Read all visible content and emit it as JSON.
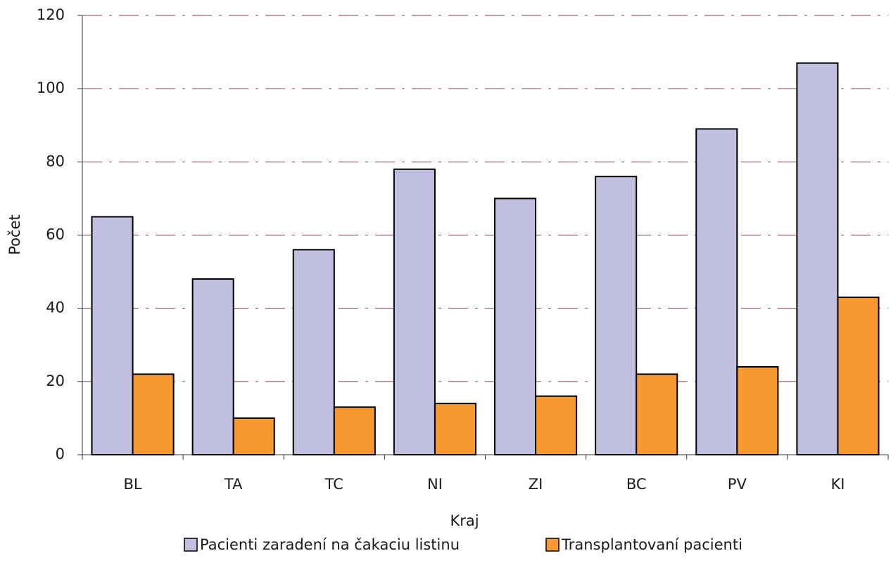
{
  "chart_data": {
    "type": "bar",
    "x_label": "Kraj",
    "y_label": "Počet",
    "categories": [
      "BL",
      "TA",
      "TC",
      "NI",
      "ZI",
      "BC",
      "PV",
      "KI"
    ],
    "series": [
      {
        "name": "Pacienti zaradení na čakaciu listinu",
        "color": "#c0bfe0",
        "values": [
          65,
          48,
          56,
          78,
          70,
          76,
          89,
          107
        ]
      },
      {
        "name": "Transplantovaní pacienti",
        "color": "#f7992f",
        "values": [
          22,
          10,
          13,
          14,
          16,
          22,
          24,
          43
        ]
      }
    ],
    "ylim": [
      0,
      120
    ],
    "yticks": [
      0,
      20,
      40,
      60,
      80,
      100,
      120
    ],
    "grid": true,
    "legend": "bottom"
  }
}
